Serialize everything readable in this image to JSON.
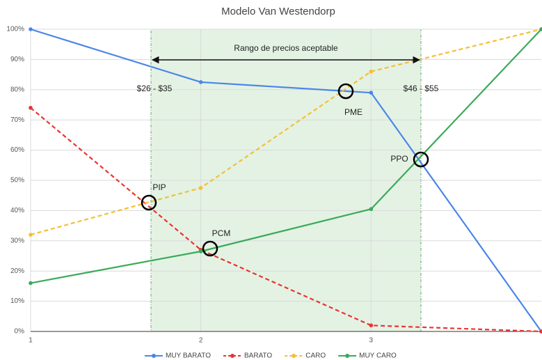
{
  "chart_data": {
    "type": "line",
    "title": "Modelo Van Westendorp",
    "x": [
      1,
      2,
      3,
      4
    ],
    "xlim": [
      1,
      4
    ],
    "xticks": [
      1,
      2,
      3
    ],
    "ylim": [
      0,
      100
    ],
    "yticks": [
      {
        "value": 0,
        "label": "0%"
      },
      {
        "value": 10,
        "label": "10%"
      },
      {
        "value": 20,
        "label": "20%"
      },
      {
        "value": 30,
        "label": "30%"
      },
      {
        "value": 40,
        "label": "40%"
      },
      {
        "value": 50,
        "label": "50%"
      },
      {
        "value": 60,
        "label": "60%"
      },
      {
        "value": 70,
        "label": "70%"
      },
      {
        "value": 80,
        "label": "80%"
      },
      {
        "value": 90,
        "label": "90%"
      },
      {
        "value": 100,
        "label": "100%"
      }
    ],
    "grid": true,
    "legend": "bottom",
    "series": [
      {
        "name": "MUY BARATO",
        "color": "#4a86e8",
        "dashed": false,
        "values": [
          100,
          82.5,
          79,
          0
        ]
      },
      {
        "name": "BARATO",
        "color": "#e8352f",
        "dashed": true,
        "values": [
          74,
          27,
          2,
          0
        ]
      },
      {
        "name": "CARO",
        "color": "#f4bf36",
        "dashed": true,
        "values": [
          32,
          47.5,
          86,
          100
        ]
      },
      {
        "name": "MUY CARO",
        "color": "#3aaa5a",
        "dashed": false,
        "values": [
          16,
          26.5,
          40.5,
          100
        ]
      }
    ],
    "annotations": [
      "Rango de precios aceptable",
      "$26 - $35",
      "$46 - $55",
      "PIP",
      "PCM",
      "PME",
      "PPO"
    ]
  }
}
